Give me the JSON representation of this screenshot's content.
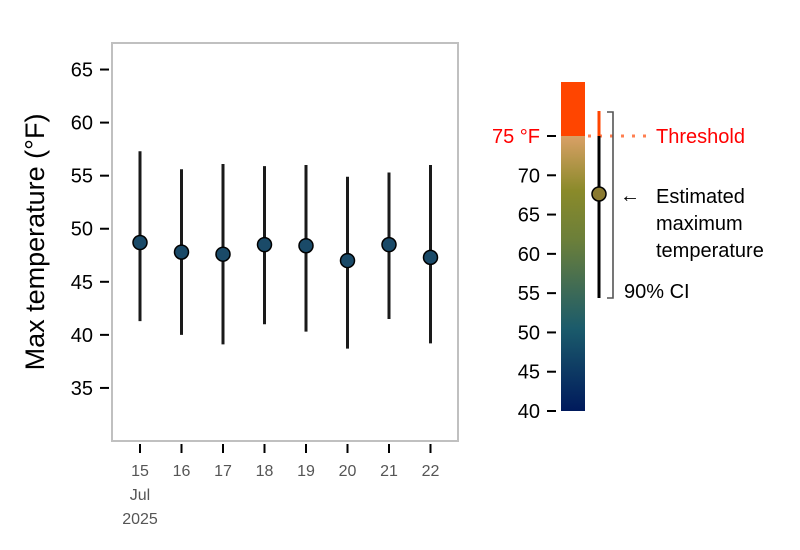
{
  "chart_data": [
    {
      "type": "scatter",
      "ylabel": "Max temperature (°F)",
      "ylim": [
        30,
        67.5
      ],
      "yticks": [
        35,
        40,
        45,
        50,
        55,
        60,
        65
      ],
      "x": [
        "15",
        "16",
        "17",
        "18",
        "19",
        "20",
        "21",
        "22"
      ],
      "x_first_extra": [
        "Jul",
        "2025"
      ],
      "points": [
        {
          "x": "15",
          "y": 48.7,
          "low": 41.3,
          "high": 57.3
        },
        {
          "x": "16",
          "y": 47.8,
          "low": 40.0,
          "high": 55.6
        },
        {
          "x": "17",
          "y": 47.6,
          "low": 39.1,
          "high": 56.1
        },
        {
          "x": "18",
          "y": 48.5,
          "low": 41.0,
          "high": 55.9
        },
        {
          "x": "19",
          "y": 48.4,
          "low": 40.3,
          "high": 56.0
        },
        {
          "x": "20",
          "y": 47.0,
          "low": 38.7,
          "high": 54.9
        },
        {
          "x": "21",
          "y": 48.5,
          "low": 41.5,
          "high": 55.3
        },
        {
          "x": "22",
          "y": 47.3,
          "low": 39.2,
          "high": 56.0
        }
      ],
      "colors": {
        "marker": "#1a4a68",
        "errorbar": "#1a1a1a",
        "frame": "#c0c0c0"
      }
    },
    {
      "type": "legend-colorbar",
      "yticks": [
        40,
        45,
        50,
        55,
        60,
        65,
        70
      ],
      "ylim": [
        40,
        81
      ],
      "threshold": {
        "value": 75,
        "label": "75 °F",
        "text": "Threshold"
      },
      "example": {
        "y": 67.7,
        "low": 54.5,
        "high": 78.5
      },
      "labels": {
        "estimate": [
          "Estimated",
          "maximum",
          "temperature"
        ],
        "ci": "90% CI"
      },
      "colors": {
        "above_threshold": "#ff4500",
        "gradient": [
          "#001a5c",
          "#1b5b6b",
          "#5a7a3a",
          "#8a8a2a",
          "#d9a066"
        ],
        "threshold_text": "#ff0000",
        "threshold_line": "#ff7f50",
        "example_marker": "#8a7a30"
      }
    }
  ]
}
